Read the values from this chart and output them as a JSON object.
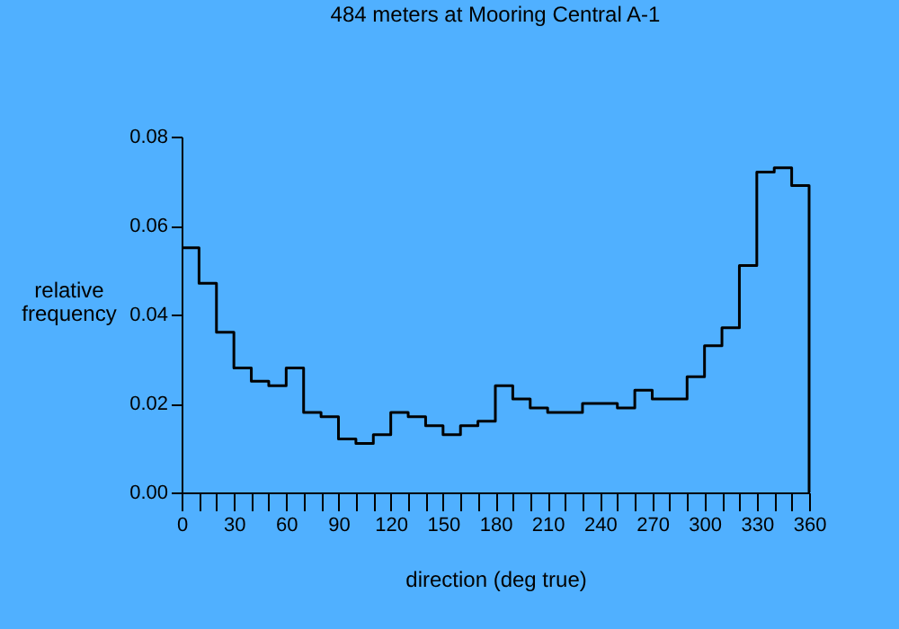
{
  "chart_data": {
    "type": "histogram",
    "title": "484 meters at Mooring Central A-1",
    "xlabel": "direction (deg true)",
    "ylabel": "relative frequency",
    "color": "#000000",
    "bins": [
      0,
      10,
      20,
      30,
      40,
      50,
      60,
      70,
      80,
      90,
      100,
      110,
      120,
      130,
      140,
      150,
      160,
      170,
      180,
      190,
      200,
      210,
      220,
      230,
      240,
      250,
      260,
      270,
      280,
      290,
      300,
      310,
      320,
      330,
      340,
      350,
      360
    ],
    "values": [
      0.055,
      0.047,
      0.036,
      0.028,
      0.025,
      0.024,
      0.028,
      0.018,
      0.017,
      0.012,
      0.011,
      0.013,
      0.018,
      0.017,
      0.015,
      0.013,
      0.015,
      0.016,
      0.024,
      0.021,
      0.019,
      0.018,
      0.018,
      0.02,
      0.02,
      0.019,
      0.023,
      0.021,
      0.021,
      0.026,
      0.033,
      0.037,
      0.051,
      0.072,
      0.073,
      0.069
    ],
    "xlim": [
      0,
      360
    ],
    "xticks": [
      0,
      {
        "value": 10,
        "label": null
      },
      {
        "value": 20,
        "label": null
      },
      30,
      {
        "value": 40,
        "label": null
      },
      {
        "value": 50,
        "label": null
      },
      60,
      {
        "value": 70,
        "label": null
      },
      {
        "value": 80,
        "label": null
      },
      90,
      {
        "value": 100,
        "label": null
      },
      {
        "value": 110,
        "label": null
      },
      120,
      {
        "value": 130,
        "label": null
      },
      {
        "value": 140,
        "label": null
      },
      150,
      {
        "value": 160,
        "label": null
      },
      {
        "value": 170,
        "label": null
      },
      180,
      {
        "value": 190,
        "label": null
      },
      {
        "value": 200,
        "label": null
      },
      210,
      {
        "value": 220,
        "label": null
      },
      {
        "value": 230,
        "label": null
      },
      240,
      {
        "value": 250,
        "label": null
      },
      {
        "value": 260,
        "label": null
      },
      270,
      {
        "value": 280,
        "label": null
      },
      {
        "value": 290,
        "label": null
      },
      300,
      {
        "value": 310,
        "label": null
      },
      {
        "value": 320,
        "label": null
      },
      330,
      {
        "value": 340,
        "label": null
      },
      {
        "value": 350,
        "label": null
      },
      360
    ],
    "ylim": [
      0,
      0.08
    ],
    "yticks": [
      {
        "value": 0,
        "label": "0.00"
      },
      {
        "value": 0.02,
        "label": "0.02"
      },
      {
        "value": 0.04,
        "label": "0.04"
      },
      {
        "value": 0.06,
        "label": "0.06"
      },
      {
        "value": 0.08,
        "label": "0.08"
      }
    ],
    "grid": false
  }
}
